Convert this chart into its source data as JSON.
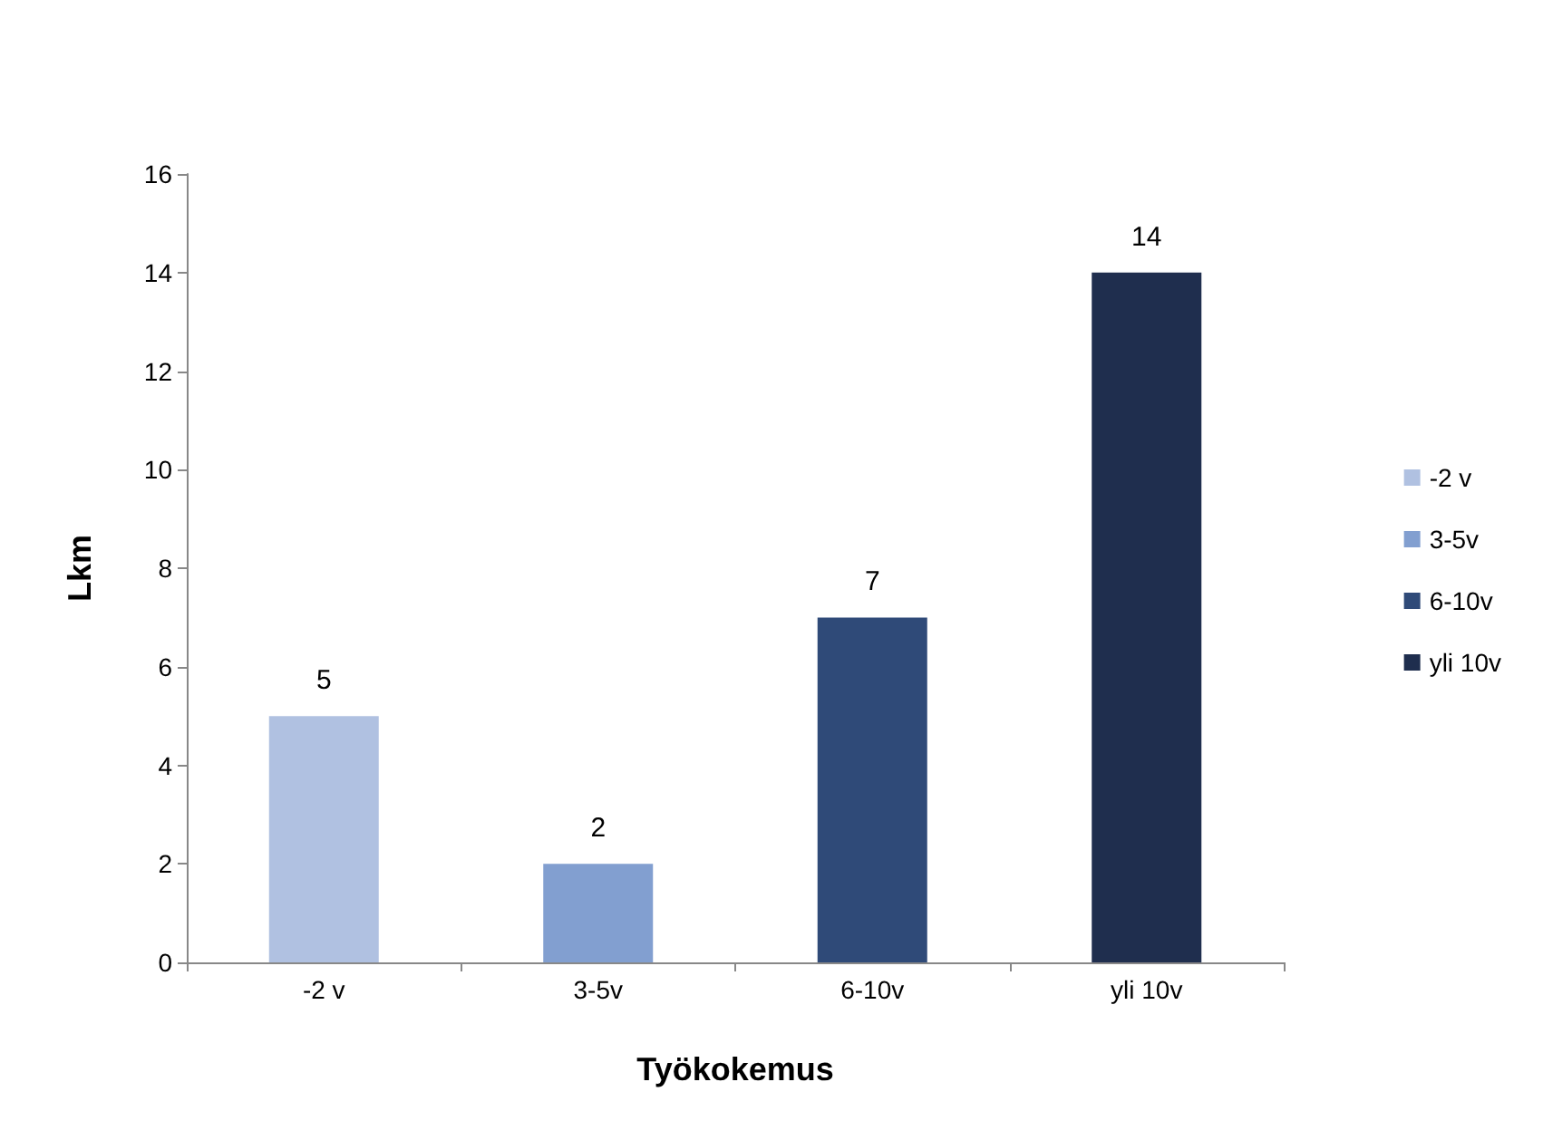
{
  "chart_data": {
    "type": "bar",
    "xlabel": "Työkokemus",
    "ylabel": "Lkm",
    "categories": [
      "-2 v",
      "3-5v",
      "6-10v",
      "yli 10v"
    ],
    "series": [
      {
        "name": "-2 v",
        "color": "#b0c1e1",
        "values": [
          5,
          null,
          null,
          null
        ]
      },
      {
        "name": "3-5v",
        "color": "#829fd0",
        "values": [
          null,
          2,
          null,
          null
        ]
      },
      {
        "name": "6-10v",
        "color": "#2f4a78",
        "values": [
          null,
          null,
          7,
          null
        ]
      },
      {
        "name": "yli 10v",
        "color": "#1f2e4e",
        "values": [
          null,
          null,
          null,
          14
        ]
      }
    ],
    "stacked": true,
    "ylim": [
      0,
      16
    ],
    "yticks": [
      0,
      2,
      4,
      6,
      8,
      10,
      12,
      14,
      16
    ],
    "grid": false,
    "legend": "right",
    "data_labels": true
  }
}
